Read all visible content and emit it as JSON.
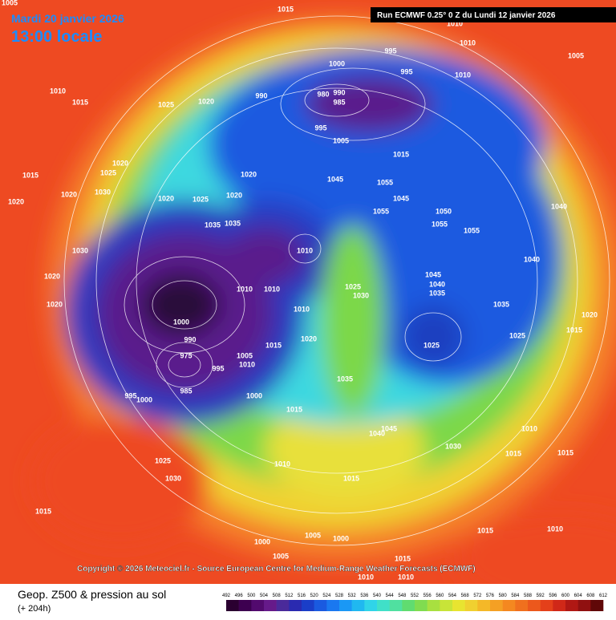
{
  "header": {
    "date": "Mardi 20 janvier 2026",
    "time": "13:00 locale",
    "run": "Run ECMWF 0.25° 0 Z du Lundi 12 janvier 2026"
  },
  "map": {
    "pressure_labels": [
      1005,
      1015,
      1010,
      1010,
      995,
      1005,
      1000,
      995,
      1010,
      1010,
      1015,
      1025,
      1020,
      990,
      980,
      990,
      985,
      995,
      1005,
      1015,
      1015,
      1020,
      1025,
      1020,
      1045,
      1055,
      1020,
      1020,
      1030,
      1020,
      1025,
      1020,
      1045,
      1055,
      1050,
      1035,
      1035,
      1055,
      1055,
      1040,
      1030,
      1010,
      1040,
      1020,
      1010,
      1010,
      1045,
      1040,
      1035,
      1010,
      1025,
      1030,
      1020,
      1035,
      1000,
      990,
      975,
      1015,
      1020,
      1005,
      1010,
      995,
      1025,
      1025,
      1015,
      1020,
      995,
      1000,
      985,
      1000,
      1035,
      1015,
      1045,
      1040,
      1030,
      1010,
      1015,
      1015,
      1010,
      1025,
      1030,
      1015,
      1015,
      1015,
      1010,
      1005,
      1000,
      1000,
      1005,
      1015,
      1010,
      1010
    ]
  },
  "footer": {
    "copyright": "Copyright © 2026 Meteociel.fr - Source European Centre for Medium-Range Weather Forecasts (ECMWF)",
    "title": "Geop. Z500 & pression au sol",
    "lead": "(+ 204h)"
  },
  "legend": {
    "levels": [
      492,
      496,
      500,
      504,
      508,
      512,
      516,
      520,
      524,
      528,
      532,
      536,
      540,
      544,
      548,
      552,
      556,
      560,
      564,
      568,
      572,
      576,
      580,
      584,
      588,
      592,
      596,
      600,
      604,
      608,
      612
    ],
    "colors": [
      "#2a0030",
      "#3d0050",
      "#520a6e",
      "#661a8a",
      "#4a2a9a",
      "#2a2ab0",
      "#1a3ec8",
      "#1a5ae0",
      "#1a78f0",
      "#1a98f5",
      "#20b8f0",
      "#30d4e8",
      "#40e0c8",
      "#50e0a0",
      "#60dc70",
      "#80dc50",
      "#a8e040",
      "#c8e438",
      "#e8e430",
      "#f0d030",
      "#f4b828",
      "#f4a024",
      "#f48820",
      "#f0701e",
      "#ec581c",
      "#e4401a",
      "#d02818",
      "#b01814",
      "#901010",
      "#600808"
    ]
  }
}
